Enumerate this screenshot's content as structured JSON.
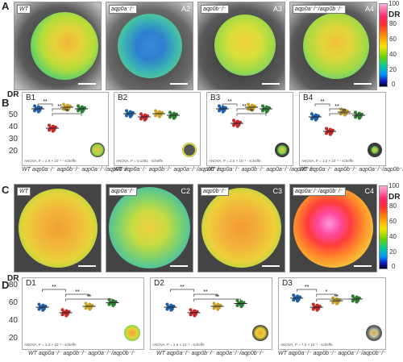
{
  "panels": {
    "A": "A",
    "B": "B",
    "C": "C",
    "D": "D"
  },
  "colorbar_top": {
    "label": "DR",
    "ticks": [
      "100",
      "80",
      "60",
      "40",
      "20",
      "0"
    ]
  },
  "colorbar_bottom": {
    "label": "DR",
    "ticks": [
      "100",
      "80",
      "60",
      "40",
      "20",
      "0"
    ]
  },
  "row_A": [
    {
      "id": "",
      "genotype": "WT"
    },
    {
      "id": "A2",
      "genotype": "aqp0a⁻/⁻"
    },
    {
      "id": "A3",
      "genotype": "aqp0b⁻/⁻"
    },
    {
      "id": "A4",
      "genotype": "aqp0a⁻/⁻/aqp0b⁻/⁻"
    }
  ],
  "row_C": [
    {
      "id": "",
      "genotype": "WT"
    },
    {
      "id": "C2",
      "genotype": "aqp0a⁻/⁻"
    },
    {
      "id": "C3",
      "genotype": "aqp0b⁻/⁻"
    },
    {
      "id": "C4",
      "genotype": "aqp0a⁻/⁻/aqp0b⁻/⁻"
    }
  ],
  "row_B": {
    "ylabel": "DR",
    "yticks": [
      "50",
      "40",
      "30",
      "20"
    ],
    "categories": [
      "WT",
      "aqp0a⁻/⁻",
      "aqp0b⁻/⁻",
      "aqp0a⁻/⁻/aqp0b⁻/⁻"
    ],
    "plots": [
      {
        "title": "B1",
        "anova": "ANOVA, P = 2.9 × 10⁻¹ - scheffe",
        "sig": [
          "**",
          "**",
          "**"
        ]
      },
      {
        "title": "B2",
        "anova": "ANOVA, P = 0.1381 - scheffe",
        "sig": []
      },
      {
        "title": "B3",
        "anova": "ANOVA, P = 2.5 × 10⁻¹ - scheffe",
        "sig": [
          "**",
          "**",
          "**"
        ]
      },
      {
        "title": "B4",
        "anova": "ANOVA, P = 1.2 × 10⁻¹ - scheffe",
        "sig": [
          "**",
          "**",
          "**"
        ]
      }
    ]
  },
  "row_D": {
    "ylabel": "DR",
    "yticks": [
      "80",
      "60",
      "40",
      "20"
    ],
    "categories": [
      "WT",
      "aqp0a⁻/⁻",
      "aqp0b⁻/⁻",
      "aqp0a⁻/⁻/aqp0b⁻/⁻"
    ],
    "plots": [
      {
        "title": "D1",
        "anova": "ANOVA, P = 2.3 × 10⁻¹ - scheffe",
        "sig": [
          "**",
          "**",
          "**"
        ]
      },
      {
        "title": "D2",
        "anova": "ANOVA, P = 2.6 × 10⁻¹ - scheffe",
        "sig": [
          "**",
          "**",
          "**"
        ]
      },
      {
        "title": "D3",
        "anova": "ANOVA, P = 7.0 × 10⁻¹ - scheffe",
        "sig": [
          "**",
          "*",
          "**"
        ]
      }
    ]
  },
  "chart_data": [
    {
      "type": "scatter",
      "title": "B1",
      "categories": [
        "WT",
        "aqp0a⁻/⁻",
        "aqp0b⁻/⁻",
        "aqp0a⁻/⁻/aqp0b⁻/⁻"
      ],
      "values": [
        50,
        38,
        51,
        50
      ],
      "ylabel": "DR",
      "ylim": [
        20,
        55
      ],
      "series_colors": [
        "#1f5fa8",
        "#c62828",
        "#c9a227",
        "#2e7d32"
      ]
    },
    {
      "type": "scatter",
      "title": "B2",
      "categories": [
        "WT",
        "aqp0a⁻/⁻",
        "aqp0b⁻/⁻",
        "aqp0a⁻/⁻/aqp0b⁻/⁻"
      ],
      "values": [
        47,
        45,
        47,
        46
      ],
      "ylabel": "DR",
      "ylim": [
        20,
        55
      ]
    },
    {
      "type": "scatter",
      "title": "B3",
      "categories": [
        "WT",
        "aqp0a⁻/⁻",
        "aqp0b⁻/⁻",
        "aqp0a⁻/⁻/aqp0b⁻/⁻"
      ],
      "values": [
        50,
        41,
        51,
        50
      ],
      "ylabel": "DR",
      "ylim": [
        20,
        55
      ]
    },
    {
      "type": "scatter",
      "title": "B4",
      "categories": [
        "WT",
        "aqp0a⁻/⁻",
        "aqp0b⁻/⁻",
        "aqp0a⁻/⁻/aqp0b⁻/⁻"
      ],
      "values": [
        45,
        36,
        48,
        46
      ],
      "ylabel": "DR",
      "ylim": [
        20,
        55
      ]
    },
    {
      "type": "scatter",
      "title": "D1",
      "categories": [
        "WT",
        "aqp0a⁻/⁻",
        "aqp0b⁻/⁻",
        "aqp0a⁻/⁻/aqp0b⁻/⁻"
      ],
      "values": [
        57,
        51,
        58,
        62
      ],
      "ylabel": "DR",
      "ylim": [
        20,
        80
      ]
    },
    {
      "type": "scatter",
      "title": "D2",
      "categories": [
        "WT",
        "aqp0a⁻/⁻",
        "aqp0b⁻/⁻",
        "aqp0a⁻/⁻/aqp0b⁻/⁻"
      ],
      "values": [
        57,
        51,
        58,
        61
      ],
      "ylabel": "DR",
      "ylim": [
        20,
        80
      ]
    },
    {
      "type": "scatter",
      "title": "D3",
      "categories": [
        "WT",
        "aqp0a⁻/⁻",
        "aqp0b⁻/⁻",
        "aqp0a⁻/⁻/aqp0b⁻/⁻"
      ],
      "values": [
        67,
        57,
        64,
        66
      ],
      "ylabel": "DR",
      "ylim": [
        20,
        80
      ]
    }
  ],
  "colors": {
    "wt": "#1f5fa8",
    "aqp0a": "#c62828",
    "aqp0b": "#c9a227",
    "double": "#2e7d32"
  }
}
